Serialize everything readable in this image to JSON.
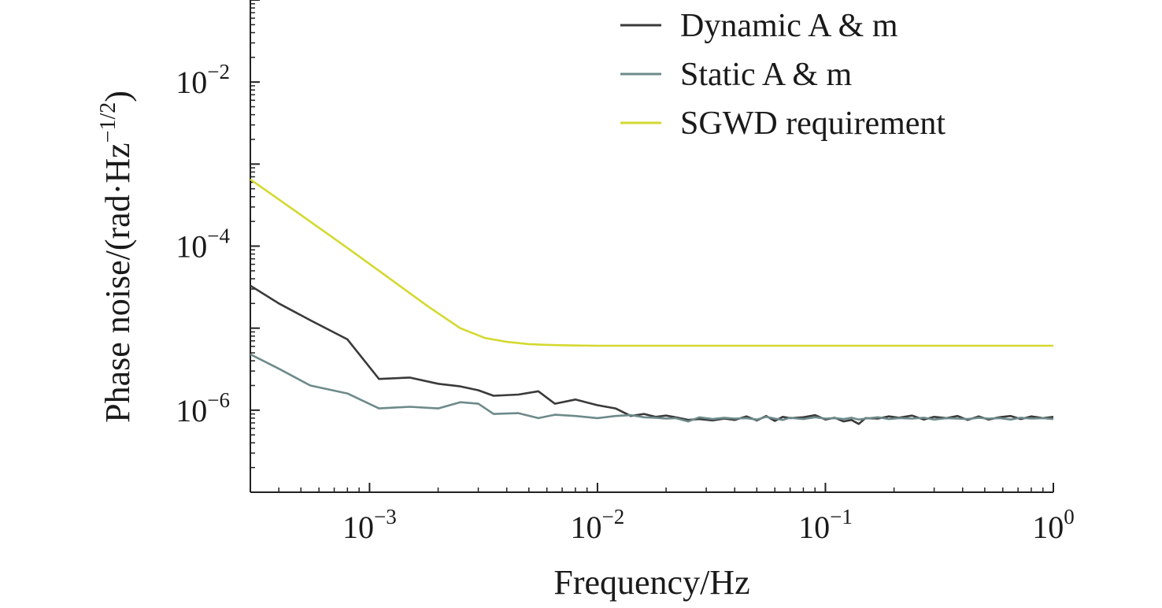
{
  "chart_data": {
    "type": "line",
    "title": "",
    "xlabel": "Frequency/Hz",
    "ylabel_main": "Phase noise/(rad·Hz",
    "ylabel_exp": "−1/2",
    "ylabel_close": ")",
    "xscale": "log",
    "yscale": "log",
    "xlim": [
      0.0003,
      1
    ],
    "ylim": [
      1e-07,
      0.1
    ],
    "grid": false,
    "legend_position": "top-right",
    "x_ticks": [
      {
        "value": 0.001,
        "base": "10",
        "exp": "−3"
      },
      {
        "value": 0.01,
        "base": "10",
        "exp": "−2"
      },
      {
        "value": 0.1,
        "base": "10",
        "exp": "−1"
      },
      {
        "value": 1,
        "base": "10",
        "exp": "0"
      }
    ],
    "y_ticks": [
      {
        "value": 0.01,
        "base": "10",
        "exp": "−2"
      },
      {
        "value": 0.0001,
        "base": "10",
        "exp": "−4"
      },
      {
        "value": 1e-06,
        "base": "10",
        "exp": "−6"
      }
    ],
    "series": [
      {
        "name": "Dynamic A & m",
        "color": "#3a3a3a",
        "x": [
          0.0003,
          0.0004,
          0.00055,
          0.0008,
          0.0011,
          0.0015,
          0.002,
          0.0025,
          0.003,
          0.0035,
          0.0045,
          0.0055,
          0.0065,
          0.008,
          0.01,
          0.012,
          0.014,
          0.016,
          0.018,
          0.02,
          0.022,
          0.025,
          0.028,
          0.032,
          0.036,
          0.04,
          0.045,
          0.05,
          0.055,
          0.06,
          0.065,
          0.07,
          0.08,
          0.09,
          0.1,
          0.11,
          0.12,
          0.13,
          0.14,
          0.15,
          0.17,
          0.19,
          0.21,
          0.24,
          0.27,
          0.3,
          0.34,
          0.38,
          0.42,
          0.47,
          0.52,
          0.58,
          0.65,
          0.72,
          0.8,
          0.9,
          1.0
        ],
        "y": [
          3.3e-05,
          2e-05,
          1.25e-05,
          7.3e-06,
          2.4e-06,
          2.5e-06,
          2.1e-06,
          1.95e-06,
          1.75e-06,
          1.5e-06,
          1.55e-06,
          1.7e-06,
          1.2e-06,
          1.35e-06,
          1.15e-06,
          1.05e-06,
          8.5e-07,
          9e-07,
          8.3e-07,
          8.6e-07,
          8.2e-07,
          7.6e-07,
          7.8e-07,
          7.5e-07,
          7.9e-07,
          7.6e-07,
          8.4e-07,
          7.5e-07,
          8.5e-07,
          7.4e-07,
          8.3e-07,
          8e-07,
          8.2e-07,
          8.7e-07,
          7.7e-07,
          8.1e-07,
          7.3e-07,
          7.6e-07,
          6.8e-07,
          8e-07,
          7.9e-07,
          8.4e-07,
          8.1e-07,
          8.6e-07,
          7.7e-07,
          8.3e-07,
          8e-07,
          8.5e-07,
          7.6e-07,
          8.4e-07,
          7.7e-07,
          8.2e-07,
          8.5e-07,
          7.8e-07,
          8.4e-07,
          8e-07,
          8.3e-07
        ]
      },
      {
        "name": "Static A & m",
        "color": "#6e8a8a",
        "x": [
          0.0003,
          0.0004,
          0.00055,
          0.0008,
          0.0011,
          0.0015,
          0.002,
          0.0025,
          0.003,
          0.0035,
          0.0045,
          0.0055,
          0.0065,
          0.008,
          0.01,
          0.012,
          0.014,
          0.016,
          0.018,
          0.02,
          0.022,
          0.025,
          0.028,
          0.032,
          0.036,
          0.04,
          0.045,
          0.05,
          0.055,
          0.06,
          0.065,
          0.07,
          0.08,
          0.09,
          0.1,
          0.11,
          0.12,
          0.13,
          0.14,
          0.15,
          0.17,
          0.19,
          0.21,
          0.24,
          0.27,
          0.3,
          0.34,
          0.38,
          0.42,
          0.47,
          0.52,
          0.58,
          0.65,
          0.72,
          0.8,
          0.9,
          1.0
        ],
        "y": [
          4.8e-06,
          3.2e-06,
          2e-06,
          1.6e-06,
          1.05e-06,
          1.1e-06,
          1.05e-06,
          1.25e-06,
          1.2e-06,
          9e-07,
          9.2e-07,
          8e-07,
          8.8e-07,
          8.5e-07,
          8e-07,
          8.5e-07,
          8.7e-07,
          8.2e-07,
          8.1e-07,
          7.9e-07,
          8e-07,
          7.3e-07,
          8.2e-07,
          7.8e-07,
          8.1e-07,
          7.9e-07,
          8e-07,
          7.7e-07,
          8.3e-07,
          7.9e-07,
          7.6e-07,
          8.1e-07,
          7.8e-07,
          8.2e-07,
          7.9e-07,
          8e-07,
          7.8e-07,
          8.1e-07,
          7.7e-07,
          7.9e-07,
          8.2e-07,
          7.8e-07,
          8e-07,
          7.9e-07,
          8.1e-07,
          7.7e-07,
          8e-07,
          7.9e-07,
          7.8e-07,
          8.1e-07,
          7.9e-07,
          8e-07,
          7.7e-07,
          8.1e-07,
          7.9e-07,
          8e-07,
          7.8e-07
        ]
      },
      {
        "name": "SGWD requirement",
        "color": "#d4d930",
        "x": [
          0.0003,
          0.0005,
          0.0008,
          0.0012,
          0.0018,
          0.0025,
          0.0032,
          0.004,
          0.005,
          0.006,
          0.008,
          0.01,
          0.02,
          0.05,
          0.1,
          0.2,
          0.5,
          1.0
        ],
        "y": [
          0.00065,
          0.00024,
          9.5e-05,
          4.2e-05,
          1.85e-05,
          1e-05,
          7.6e-06,
          6.8e-06,
          6.4e-06,
          6.25e-06,
          6.15e-06,
          6.1e-06,
          6.1e-06,
          6.1e-06,
          6.1e-06,
          6.1e-06,
          6.1e-06,
          6.1e-06
        ]
      }
    ]
  }
}
